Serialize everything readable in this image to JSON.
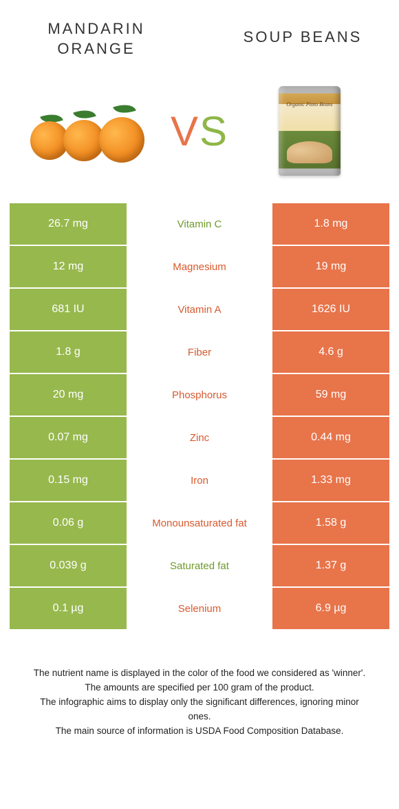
{
  "colors": {
    "green": "#97b84d",
    "orange": "#e8744a",
    "text_green": "#6e9a2a",
    "text_orange": "#d8592e"
  },
  "header": {
    "left_title": "MANDARIN ORANGE",
    "right_title": "SOUP BEANS",
    "vs": "VS"
  },
  "can_label": "Organic\nPinto Beans",
  "comparison": {
    "rows": [
      {
        "left": "26.7 mg",
        "label": "Vitamin C",
        "right": "1.8 mg",
        "winner": "left"
      },
      {
        "left": "12 mg",
        "label": "Magnesium",
        "right": "19 mg",
        "winner": "right"
      },
      {
        "left": "681 IU",
        "label": "Vitamin A",
        "right": "1626 IU",
        "winner": "right"
      },
      {
        "left": "1.8 g",
        "label": "Fiber",
        "right": "4.6 g",
        "winner": "right"
      },
      {
        "left": "20 mg",
        "label": "Phosphorus",
        "right": "59 mg",
        "winner": "right"
      },
      {
        "left": "0.07 mg",
        "label": "Zinc",
        "right": "0.44 mg",
        "winner": "right"
      },
      {
        "left": "0.15 mg",
        "label": "Iron",
        "right": "1.33 mg",
        "winner": "right"
      },
      {
        "left": "0.06 g",
        "label": "Monounsaturated fat",
        "right": "1.58 g",
        "winner": "right"
      },
      {
        "left": "0.039 g",
        "label": "Saturated fat",
        "right": "1.37 g",
        "winner": "left"
      },
      {
        "left": "0.1 µg",
        "label": "Selenium",
        "right": "6.9 µg",
        "winner": "right"
      }
    ]
  },
  "footer": {
    "line1": "The nutrient name is displayed in the color of the food we considered as 'winner'.",
    "line2": "The amounts are specified per 100 gram of the product.",
    "line3": "The infographic aims to display only the significant differences, ignoring minor ones.",
    "line4": "The main source of information is USDA Food Composition Database."
  }
}
